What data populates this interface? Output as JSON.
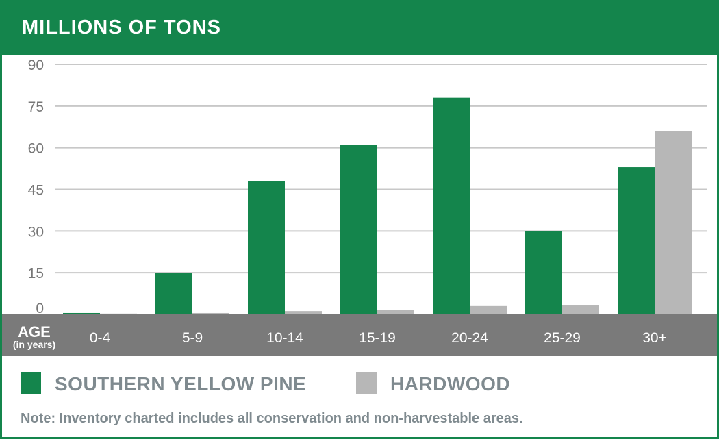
{
  "header": {
    "title": "MILLIONS OF TONS"
  },
  "axis": {
    "x_title": "AGE",
    "x_subtitle": "(in years)"
  },
  "legend": {
    "items": [
      {
        "label": "SOUTHERN YELLOW PINE",
        "color": "#14854c"
      },
      {
        "label": "HARDWOOD",
        "color": "#b7b7b7"
      }
    ]
  },
  "note": "Note: Inventory charted includes all conservation and non-harvestable areas.",
  "colors": {
    "brand": "#14854c",
    "hardwood": "#b7b7b7",
    "axis_band": "#7a7a7a",
    "grid": "#c8c8c8"
  },
  "chart_data": {
    "type": "bar",
    "title": "MILLIONS OF TONS",
    "xlabel": "AGE (in years)",
    "ylabel": "",
    "categories": [
      "0-4",
      "5-9",
      "10-14",
      "15-19",
      "20-24",
      "25-29",
      "30+"
    ],
    "series": [
      {
        "name": "SOUTHERN YELLOW PINE",
        "values": [
          0.5,
          15,
          48,
          61,
          78,
          30,
          53
        ]
      },
      {
        "name": "HARDWOOD",
        "values": [
          0.3,
          0.5,
          1.2,
          1.7,
          3,
          3.2,
          66
        ]
      }
    ],
    "yticks": [
      0,
      15,
      30,
      45,
      60,
      75,
      90
    ],
    "ylim": [
      0,
      90
    ],
    "grid": true,
    "legend_position": "bottom"
  }
}
